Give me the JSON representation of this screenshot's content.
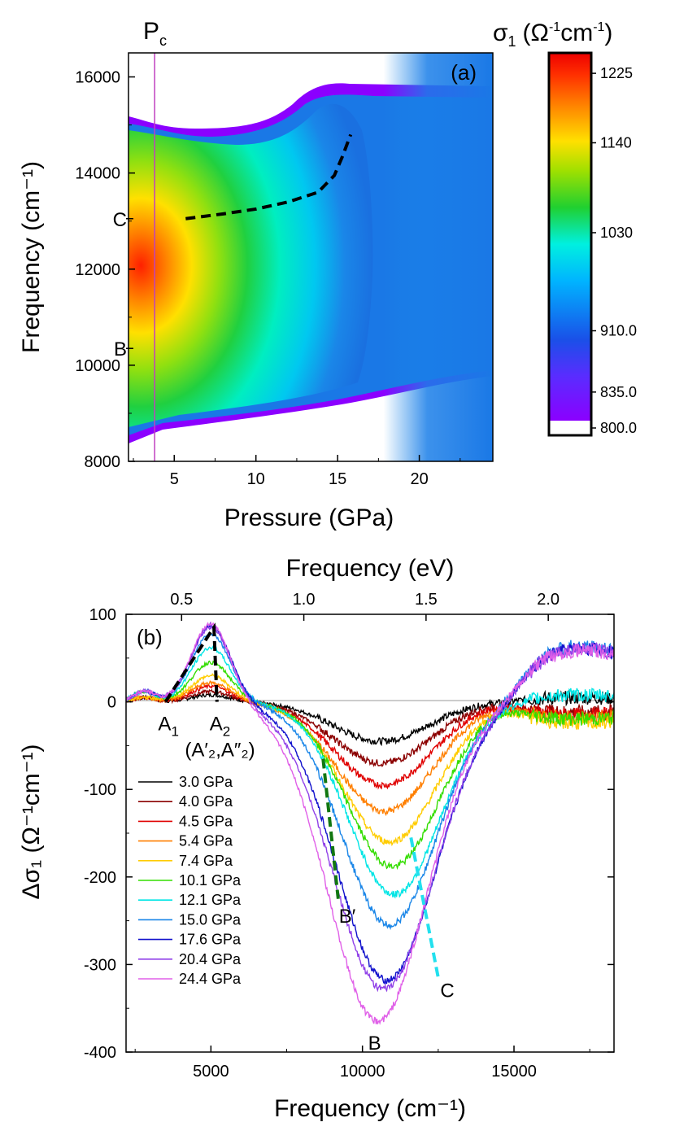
{
  "chart_data": [
    {
      "type": "heatmap",
      "panel_label": "(a)",
      "xlabel": "Pressure (GPa)",
      "ylabel": "Frequency (cm⁻¹)",
      "xlim": [
        2.2,
        24.5
      ],
      "ylim": [
        8000,
        16500
      ],
      "x_ticks": [
        "5",
        "10",
        "15",
        "20"
      ],
      "x_tick_values": [
        5,
        10,
        15,
        20
      ],
      "y_ticks": [
        "8000",
        "10000",
        "12000",
        "14000",
        "16000"
      ],
      "y_tick_values": [
        8000,
        10000,
        12000,
        14000,
        16000
      ],
      "vertical_marker": {
        "label": "P",
        "label_sub": "c",
        "pressure": 3.8,
        "color": "#c040c0"
      },
      "side_markers": [
        {
          "label": "C",
          "frequency": 13050
        },
        {
          "label": "B",
          "frequency": 10350
        }
      ],
      "dashed_line": {
        "color": "#000000",
        "points": [
          [
            5.7,
            13050
          ],
          [
            8,
            13150
          ],
          [
            10,
            13250
          ],
          [
            12,
            13400
          ],
          [
            13.8,
            13600
          ],
          [
            14.8,
            13950
          ],
          [
            15.3,
            14350
          ],
          [
            15.8,
            14800
          ]
        ]
      },
      "colorbar": {
        "title": "σ",
        "title_sub": "1",
        "title_unit": "(Ω",
        "title_unit_sup1": "-1",
        "title_unit_mid": "cm",
        "title_unit_sup2": "-1",
        "title_unit_end": ")",
        "min": 800,
        "max": 1250,
        "tick_labels": [
          "1225",
          "1140",
          "1030",
          "910.0",
          "835.0",
          "800.0"
        ],
        "tick_values": [
          1225,
          1140,
          1030,
          910,
          835,
          800
        ]
      }
    },
    {
      "type": "line",
      "panel_label": "(b)",
      "title_top_axis": "Frequency (eV)",
      "xlabel": "Frequency (cm⁻¹)",
      "ylabel": "Δσ₁ (Ω⁻¹cm⁻¹)",
      "xlim": [
        2200,
        18300
      ],
      "ylim": [
        -400,
        100
      ],
      "x_ticks": [
        "5000",
        "10000",
        "15000"
      ],
      "x_tick_values": [
        5000,
        10000,
        15000
      ],
      "y_ticks": [
        "100",
        "0",
        "-100",
        "-200",
        "-300",
        "-400"
      ],
      "y_tick_values": [
        100,
        0,
        -100,
        -200,
        -300,
        -400
      ],
      "top_ticks": [
        "0.5",
        "1.0",
        "1.5",
        "2.0"
      ],
      "top_tick_values": [
        0.5,
        1.0,
        1.5,
        2.0
      ],
      "series": [
        {
          "name": "3.0 GPa",
          "color": "#000000",
          "peak": 8,
          "dip": -45,
          "dip_center": 10600,
          "dip_width": 2300,
          "end": 5
        },
        {
          "name": "4.0 GPa",
          "color": "#8b0000",
          "peak": 12,
          "dip": -70,
          "dip_center": 10650,
          "dip_width": 2350,
          "end": -12
        },
        {
          "name": "4.5 GPa",
          "color": "#e00000",
          "peak": 18,
          "dip": -95,
          "dip_center": 10700,
          "dip_width": 2350,
          "end": -15
        },
        {
          "name": "5.4 GPa",
          "color": "#ff7f00",
          "peak": 22,
          "dip": -125,
          "dip_center": 10750,
          "dip_width": 2350,
          "end": -18
        },
        {
          "name": "7.4 GPa",
          "color": "#ffcc00",
          "peak": 30,
          "dip": -160,
          "dip_center": 10900,
          "dip_width": 2300,
          "end": -25
        },
        {
          "name": "10.1 GPa",
          "color": "#33dd00",
          "peak": 45,
          "dip": -188,
          "dip_center": 11000,
          "dip_width": 2250,
          "end": -20
        },
        {
          "name": "12.1 GPa",
          "color": "#00e5e5",
          "peak": 62,
          "dip": -220,
          "dip_center": 11050,
          "dip_width": 2250,
          "end": 8
        },
        {
          "name": "15.0 GPa",
          "color": "#1a86e8",
          "peak": 78,
          "dip": -255,
          "dip_center": 10900,
          "dip_width": 2300,
          "end": 65
        },
        {
          "name": "17.6 GPa",
          "color": "#1010cc",
          "peak": 88,
          "dip": -318,
          "dip_center": 10800,
          "dip_width": 2400,
          "end": 62
        },
        {
          "name": "20.4 GPa",
          "color": "#9040e8",
          "peak": 86,
          "dip": -328,
          "dip_center": 10700,
          "dip_width": 2450,
          "end": 62
        },
        {
          "name": "24.4 GPa",
          "color": "#e060e8",
          "peak": 90,
          "dip": -365,
          "dip_center": 10500,
          "dip_width": 2400,
          "end": 60
        }
      ],
      "annotations": [
        {
          "label": "A",
          "sub": "1",
          "x": 3600,
          "y": -10
        },
        {
          "label": "A",
          "sub": "2",
          "x": 5300,
          "y": -10
        },
        {
          "label": "(A",
          "extra": "′₂,A″₂)",
          "x": 5300,
          "y": -40
        },
        {
          "label": "B′",
          "x": 9500,
          "y": -230
        },
        {
          "label": "C",
          "x": 12800,
          "y": -315
        },
        {
          "label": "B",
          "x": 10400,
          "y": -375
        }
      ],
      "guide_lines": [
        {
          "color": "#000000",
          "points": [
            [
              3500,
              0
            ],
            [
              5000,
              80
            ],
            [
              5100,
              85
            ],
            [
              5200,
              0
            ]
          ]
        },
        {
          "color": "#117711",
          "points": [
            [
              8700,
              -65
            ],
            [
              9200,
              -225
            ]
          ]
        },
        {
          "color": "#22e0ee",
          "points": [
            [
              11600,
              -155
            ],
            [
              12500,
              -315
            ]
          ]
        }
      ]
    }
  ]
}
